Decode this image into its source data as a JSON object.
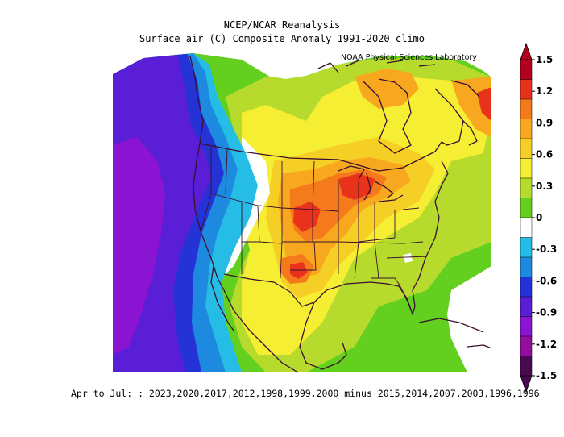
{
  "header": {
    "title": "NCEP/NCAR Reanalysis",
    "subtitle": "Surface air (C) Composite Anomaly 1991-2020 climo",
    "credit": "NOAA Physical Sciences Laboratory"
  },
  "footer": {
    "text": "Apr to Jul: : 2023,2020,2017,2012,1998,1999,2000 minus 2015,2014,2007,2003,1996,1996"
  },
  "colorbar": {
    "labels": [
      "1.5",
      "1.2",
      "0.9",
      "0.6",
      "0.3",
      "0",
      "-0.3",
      "-0.6",
      "-0.9",
      "-1.2",
      "-1.5"
    ],
    "colors": [
      "#b3001e",
      "#e8331a",
      "#f57a1c",
      "#f7a81e",
      "#f5cf26",
      "#f6ee33",
      "#b6db2c",
      "#63cf1e",
      "#ffffff",
      "#25bde6",
      "#1d8ae0",
      "#2432d6",
      "#5a1ed6",
      "#8a14d2",
      "#930e9c",
      "#4a0a4f"
    ],
    "top_arrow_color": "#b3001e",
    "bottom_arrow_color": "#4a0a4f"
  },
  "palette": {
    "deep_purple": "#8a14d2",
    "purple": "#5a1ed6",
    "blue": "#2432d6",
    "mid_blue": "#1d8ae0",
    "cyan": "#25bde6",
    "white": "#ffffff",
    "green": "#63cf1e",
    "light_green": "#b6db2c",
    "yellow": "#f6ee33",
    "gold": "#f5cf26",
    "orange": "#f7a81e",
    "dark_orange": "#f57a1c",
    "red": "#e8331a",
    "boundary": "#3a1030"
  }
}
